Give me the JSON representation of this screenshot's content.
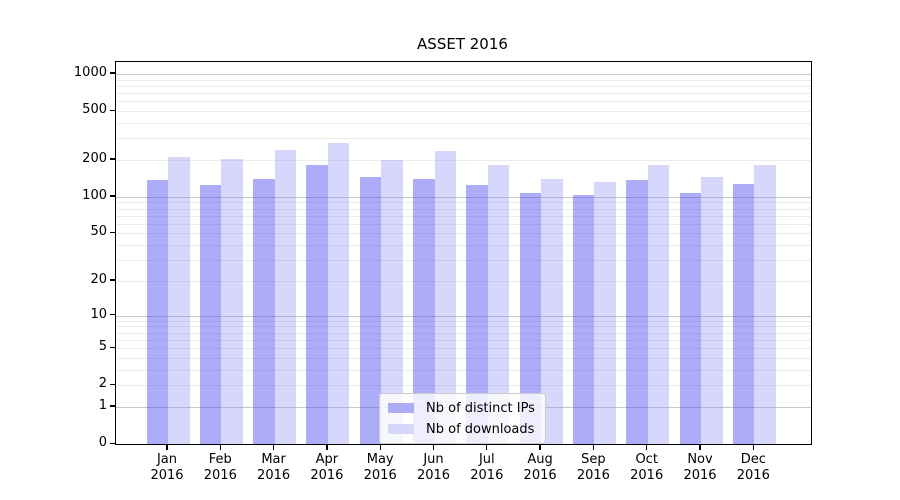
{
  "chart_data": {
    "type": "bar",
    "title": "ASSET 2016",
    "categories": [
      "Jan 2016",
      "Feb 2016",
      "Mar 2016",
      "Apr 2016",
      "May 2016",
      "Jun 2016",
      "Jul 2016",
      "Aug 2016",
      "Sep 2016",
      "Oct 2016",
      "Nov 2016",
      "Dec 2016"
    ],
    "series": [
      {
        "name": "Nb of distinct IPs",
        "color_hex": "#acacf8",
        "color_rgba": "rgba(70,70,240,0.45)",
        "values": [
          138,
          126,
          139,
          182,
          145,
          141,
          126,
          108,
          104,
          137,
          107,
          128
        ]
      },
      {
        "name": "Nb of downloads",
        "color_hex": "#d7d7fb",
        "color_rgba": "rgba(145,145,245,0.36)",
        "values": [
          213,
          205,
          240,
          277,
          200,
          238,
          181,
          141,
          132,
          182,
          146,
          181
        ]
      }
    ],
    "xlabel": "",
    "ylabel": "",
    "y_axis": {
      "scale": "log1p",
      "tick_labels": [
        1000,
        500,
        200,
        100,
        50,
        20,
        10,
        5,
        2,
        1,
        0
      ],
      "ylim": [
        0,
        1250
      ],
      "major_gridlines": [
        1,
        10,
        100,
        1000
      ],
      "minor_gridlines_per_decade": [
        2,
        3,
        4,
        5,
        6,
        7,
        8,
        9
      ]
    },
    "legend": {
      "position": "inside-bottom-center",
      "entries": [
        "Nb of distinct IPs",
        "Nb of downloads"
      ]
    },
    "grid": true,
    "colors": {
      "grid_major": "#c6c6c6",
      "grid_minor": "#ebebeb",
      "spine": "#000000",
      "text": "#000000"
    }
  }
}
